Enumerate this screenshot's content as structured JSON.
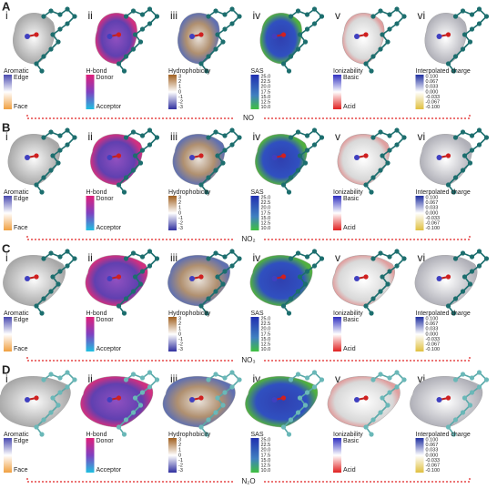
{
  "rows": [
    {
      "letter": "A",
      "molecule": "NO"
    },
    {
      "letter": "B",
      "molecule": "NO₂"
    },
    {
      "letter": "C",
      "molecule": "NO₃"
    },
    {
      "letter": "D",
      "molecule": "N₂O"
    }
  ],
  "panel_numerals": [
    "i",
    "ii",
    "iii",
    "iv",
    "v",
    "vi"
  ],
  "legends": [
    {
      "title": "Aromatic",
      "top": "Edge",
      "bottom": "Face"
    },
    {
      "title": "H-bond",
      "top": "Donor",
      "bottom": "Acceptor"
    },
    {
      "title": "Hydrophobicity",
      "ticks": [
        "3",
        "2",
        "1",
        "0",
        "-1",
        "-2",
        "-3"
      ]
    },
    {
      "title": "SAS",
      "ticks": [
        "25.0",
        "22.5",
        "20.0",
        "17.5",
        "15.0",
        "12.5",
        "10.0"
      ]
    },
    {
      "title": "Ionizability",
      "top": "Basic",
      "bottom": "Acid"
    },
    {
      "title": "Interpolated charge",
      "ticks": [
        "0.100",
        "0.067",
        "0.033",
        "0.000",
        "-0.033",
        "-0.067",
        "-0.100"
      ]
    }
  ]
}
